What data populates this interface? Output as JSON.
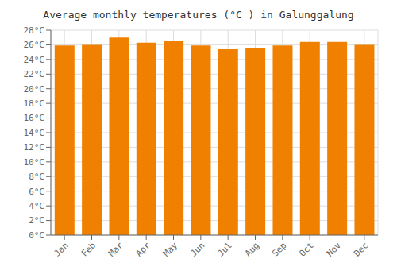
{
  "chart_data": {
    "type": "bar",
    "title": "Average monthly temperatures (°C ) in Galunggalung",
    "categories": [
      "Jan",
      "Feb",
      "Mar",
      "Apr",
      "May",
      "Jun",
      "Jul",
      "Aug",
      "Sep",
      "Oct",
      "Nov",
      "Dec"
    ],
    "values": [
      25.9,
      26.0,
      27.0,
      26.3,
      26.5,
      25.9,
      25.4,
      25.6,
      25.9,
      26.4,
      26.4,
      26.0
    ],
    "color": "#F08000",
    "ylim": [
      0,
      28
    ],
    "yticks": [
      {
        "value": 0,
        "label": "0°C"
      },
      {
        "value": 2,
        "label": "2°C"
      },
      {
        "value": 4,
        "label": "4°C"
      },
      {
        "value": 6,
        "label": "6°C"
      },
      {
        "value": 8,
        "label": "8°C"
      },
      {
        "value": 10,
        "label": "10°C"
      },
      {
        "value": 12,
        "label": "12°C"
      },
      {
        "value": 14,
        "label": "14°C"
      },
      {
        "value": 16,
        "label": "16°C"
      },
      {
        "value": 18,
        "label": "18°C"
      },
      {
        "value": 20,
        "label": "20°C"
      },
      {
        "value": 22,
        "label": "22°C"
      },
      {
        "value": 24,
        "label": "24°C"
      },
      {
        "value": 26,
        "label": "26°C"
      },
      {
        "value": 28,
        "label": "28°C"
      }
    ],
    "grid": true
  }
}
